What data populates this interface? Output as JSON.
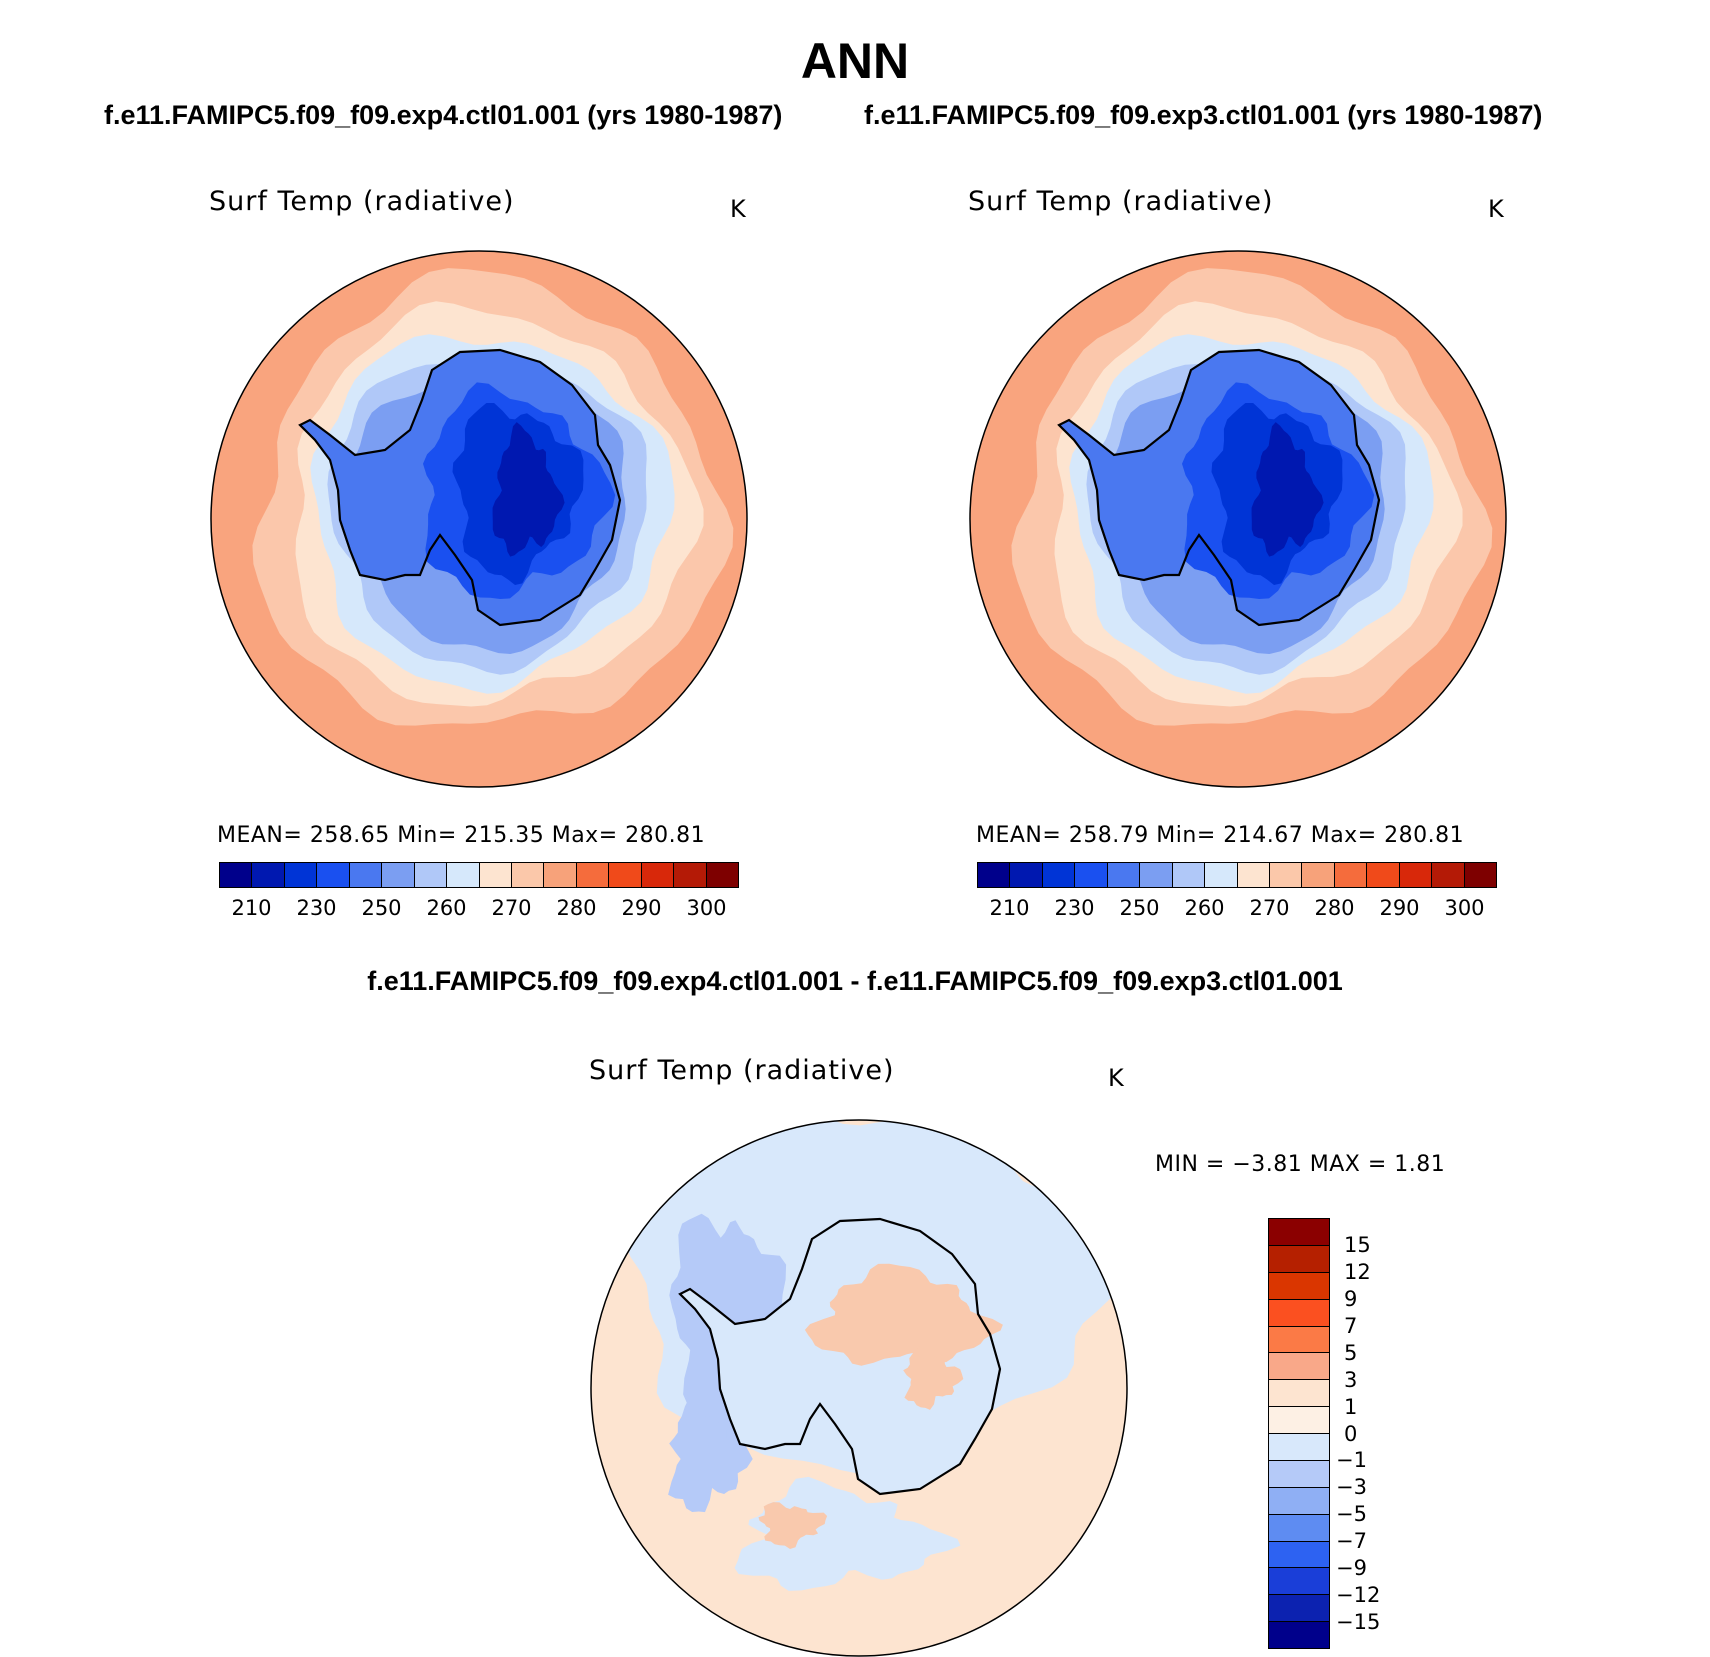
{
  "title": "ANN",
  "panels": [
    {
      "case_title": "f.e11.FAMIPC5.f09_f09.exp4.ctl01.001 (yrs 1980-1987)",
      "variable": "Surf Temp (radiative)",
      "units": "K",
      "stats": "MEAN= 258.65   Min= 215.35   Max= 280.81"
    },
    {
      "case_title": "f.e11.FAMIPC5.f09_f09.exp3.ctl01.001 (yrs 1980-1987)",
      "variable": "Surf Temp (radiative)",
      "units": "K",
      "stats": "MEAN= 258.79   Min= 214.67   Max= 280.81"
    }
  ],
  "diff_panel": {
    "title": "f.e11.FAMIPC5.f09_f09.exp4.ctl01.001 - f.e11.FAMIPC5.f09_f09.exp3.ctl01.001",
    "variable": "Surf Temp (radiative)",
    "units": "K",
    "stats": "MIN =   −3.81  MAX =    1.81"
  },
  "colorbar_main": {
    "colors": [
      "#00008b",
      "#0018b0",
      "#0034d6",
      "#1a50f0",
      "#4a78f0",
      "#7b9ef2",
      "#b0c8f8",
      "#d6e8fb",
      "#fde4d0",
      "#fbc8aa",
      "#f7a27a",
      "#f56c3c",
      "#f04a1a",
      "#d8280a",
      "#b41a06",
      "#7e0000"
    ],
    "tick_labels": [
      "210",
      "230",
      "250",
      "260",
      "270",
      "280",
      "290",
      "300"
    ]
  },
  "colorbar_diff": {
    "colors_top_to_bottom": [
      "#8b0000",
      "#b52000",
      "#da3600",
      "#fb5020",
      "#fb7a46",
      "#f9a889",
      "#fde4d0",
      "#fdf0e4",
      "#d8e8fb",
      "#b5caf8",
      "#8faff4",
      "#5e8cf2",
      "#2d62f2",
      "#1a3ed8",
      "#0c22b0",
      "#00008b"
    ],
    "tick_labels_top_to_bottom": [
      "15",
      "12",
      "9",
      "7",
      "5",
      "3",
      "1",
      "0",
      "−1",
      "−3",
      "−5",
      "−7",
      "−9",
      "−12",
      "−15"
    ]
  },
  "maps": {
    "ocean_colors_outer_to_inner": [
      "#f9a47e",
      "#fbc7ab",
      "#fde4d0",
      "#d6e8fb",
      "#b0c8f8",
      "#7b9ef2"
    ],
    "ice_colors_outer_to_inner": [
      "#4a78f0",
      "#1a50f0",
      "#0034d6",
      "#0018b0"
    ],
    "coastline_color": "#000000",
    "diff_colors": {
      "background": "#fde4d0",
      "slight_negative": "#d8e8fb",
      "negative": "#b5caf8",
      "positive": "#f9c9ad"
    }
  }
}
